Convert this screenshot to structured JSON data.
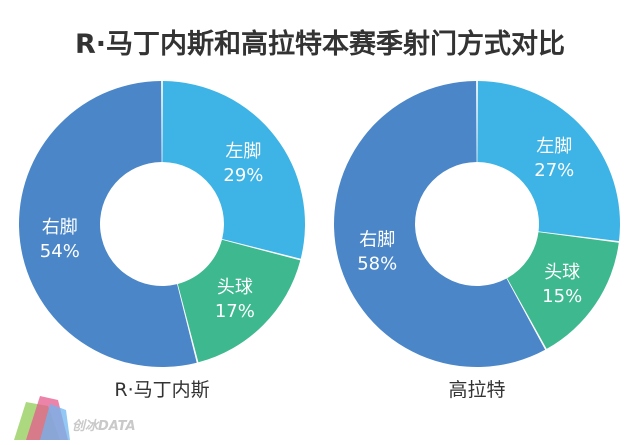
{
  "title": "R·马丁内斯和高拉特本赛季射门方式对比",
  "watermark": "创冰DATA",
  "colors": {
    "right_foot": "#4A86C8",
    "left_foot": "#3DB3E6",
    "header": "#3DB88F",
    "label": "#ffffff",
    "sublabel": "#333333"
  },
  "chart_data": [
    {
      "type": "pie",
      "subtitle": "R·马丁内斯",
      "slices": [
        {
          "label": "左脚",
          "value": 29,
          "pct": "29%",
          "color": "#3DB3E6"
        },
        {
          "label": "头球",
          "value": 17,
          "pct": "17%",
          "color": "#3DB88F"
        },
        {
          "label": "右脚",
          "value": 54,
          "pct": "54%",
          "color": "#4A86C8"
        }
      ]
    },
    {
      "type": "pie",
      "subtitle": "高拉特",
      "slices": [
        {
          "label": "左脚",
          "value": 27,
          "pct": "27%",
          "color": "#3DB3E6"
        },
        {
          "label": "头球",
          "value": 15,
          "pct": "15%",
          "color": "#3DB88F"
        },
        {
          "label": "右脚",
          "value": 58,
          "pct": "58%",
          "color": "#4A86C8"
        }
      ]
    }
  ]
}
